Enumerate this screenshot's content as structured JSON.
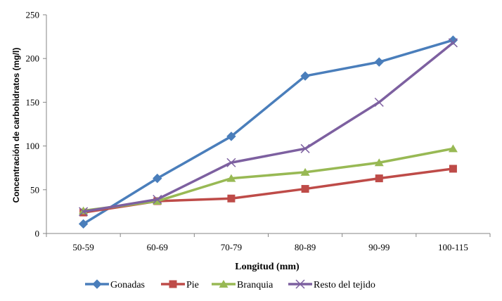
{
  "chart_data": {
    "type": "line",
    "title": "",
    "xlabel": "Longitud (mm)",
    "ylabel": "Concentración de carbohidratos (mg/l)",
    "categories": [
      "50-59",
      "60-69",
      "70-79",
      "80-89",
      "90-99",
      "100-115"
    ],
    "ylim": [
      0,
      250
    ],
    "yticks": [
      0,
      50,
      100,
      150,
      200,
      250
    ],
    "grid": false,
    "legend_position": "bottom",
    "series": [
      {
        "name": "Gonadas",
        "marker": "diamond",
        "color": "#4a7ebb",
        "values": [
          11,
          63,
          111,
          180,
          196,
          221
        ]
      },
      {
        "name": "Pie",
        "marker": "square",
        "color": "#be4b48",
        "values": [
          24,
          37,
          40,
          51,
          63,
          74
        ]
      },
      {
        "name": "Branquia",
        "marker": "triangle",
        "color": "#98b954",
        "values": [
          26,
          37,
          63,
          70,
          81,
          97
        ]
      },
      {
        "name": "Resto del tejido",
        "marker": "x",
        "color": "#7d60a0",
        "values": [
          25,
          39,
          81,
          97,
          150,
          218
        ]
      }
    ]
  }
}
